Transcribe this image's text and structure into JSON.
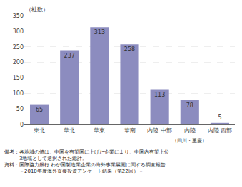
{
  "chart_data": {
    "type": "bar",
    "categories": [
      "東北",
      "華北",
      "華東",
      "華南",
      "内陸 中部",
      "内陸",
      "内陸 西部"
    ],
    "values": [
      65,
      237,
      313,
      258,
      113,
      78,
      5
    ],
    "color": "#8c8cbf",
    "ylabel": "（社数）",
    "ylim": [
      0,
      350
    ],
    "yticks": [
      0,
      50,
      100,
      150,
      200,
      250,
      300,
      350
    ],
    "grid": true,
    "data_labels": true,
    "annotations": [
      {
        "text": "（四川・重慶）",
        "category": "内陸"
      }
    ],
    "notes": [
      "備考：各地域の値は、中国を有望国に上げた企業により、中国内有望上位",
      "　　　3地域として選択された総計。",
      "資料：国際協力銀行 わが国製造業企業の海外事業展開に関する調査報告",
      "　　　－2010年度海外直接投資アンケート結果（第22回）－"
    ]
  }
}
